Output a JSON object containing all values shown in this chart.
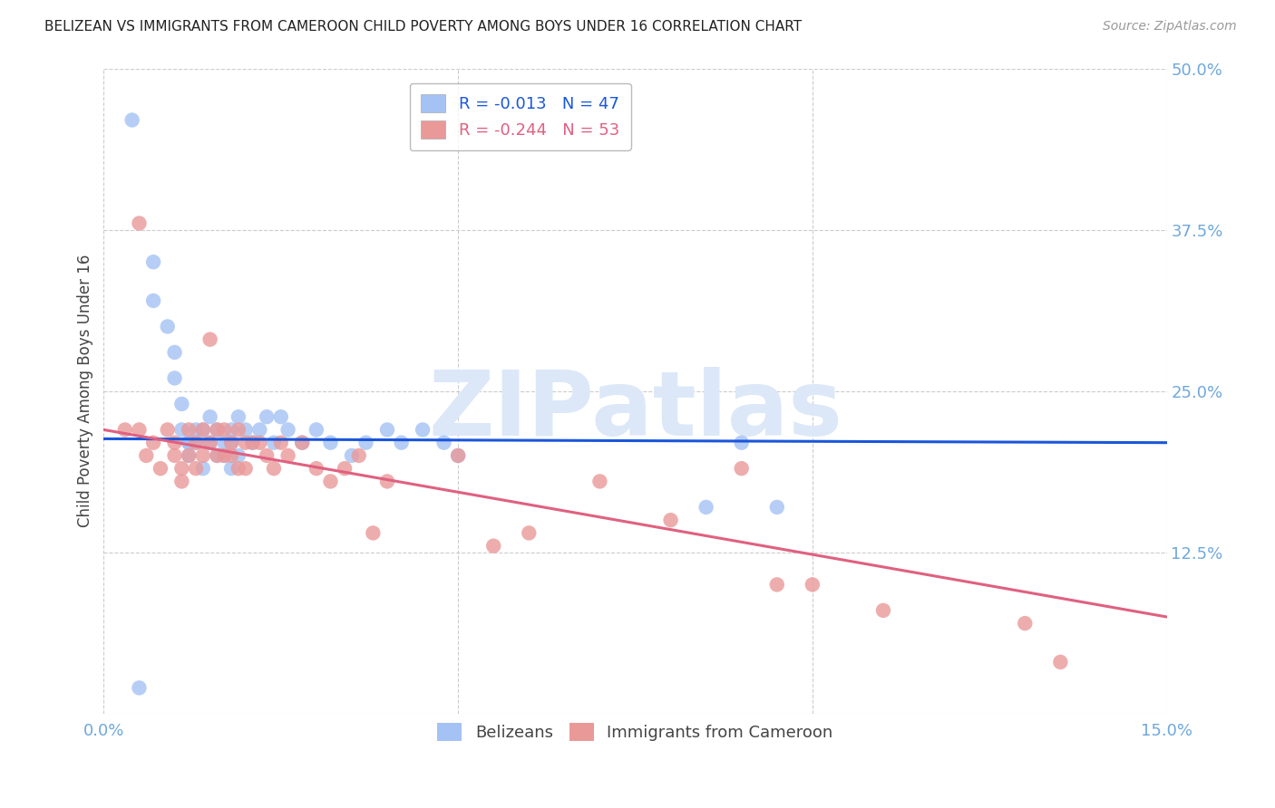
{
  "title": "BELIZEAN VS IMMIGRANTS FROM CAMEROON CHILD POVERTY AMONG BOYS UNDER 16 CORRELATION CHART",
  "source": "Source: ZipAtlas.com",
  "ylabel_label": "Child Poverty Among Boys Under 16",
  "x_min": 0.0,
  "x_max": 0.15,
  "y_min": 0.0,
  "y_max": 0.5,
  "x_ticks": [
    0.0,
    0.05,
    0.1,
    0.15
  ],
  "y_ticks": [
    0.0,
    0.125,
    0.25,
    0.375,
    0.5
  ],
  "legend1_label": "R = -0.013   N = 47",
  "legend2_label": "R = -0.244   N = 53",
  "legend1_color": "#a4c2f4",
  "legend2_color": "#ea9999",
  "line1_color": "#1a56db",
  "line2_color": "#e06080",
  "watermark_text": "ZIPatlas",
  "watermark_color": "#dce8f8",
  "grid_color": "#cccccc",
  "tick_label_color": "#6fa8dc",
  "blue_scatter_x": [
    0.004,
    0.007,
    0.007,
    0.009,
    0.01,
    0.01,
    0.011,
    0.011,
    0.012,
    0.012,
    0.012,
    0.013,
    0.013,
    0.014,
    0.014,
    0.015,
    0.015,
    0.016,
    0.016,
    0.017,
    0.017,
    0.018,
    0.018,
    0.018,
    0.019,
    0.019,
    0.02,
    0.021,
    0.022,
    0.023,
    0.024,
    0.025,
    0.026,
    0.028,
    0.03,
    0.032,
    0.035,
    0.037,
    0.04,
    0.042,
    0.045,
    0.048,
    0.05,
    0.085,
    0.09,
    0.095,
    0.005
  ],
  "blue_scatter_y": [
    0.46,
    0.35,
    0.32,
    0.3,
    0.28,
    0.26,
    0.24,
    0.22,
    0.21,
    0.21,
    0.2,
    0.22,
    0.21,
    0.22,
    0.19,
    0.23,
    0.21,
    0.22,
    0.2,
    0.21,
    0.2,
    0.22,
    0.21,
    0.19,
    0.23,
    0.2,
    0.22,
    0.21,
    0.22,
    0.23,
    0.21,
    0.23,
    0.22,
    0.21,
    0.22,
    0.21,
    0.2,
    0.21,
    0.22,
    0.21,
    0.22,
    0.21,
    0.2,
    0.16,
    0.21,
    0.16,
    0.02
  ],
  "pink_scatter_x": [
    0.003,
    0.005,
    0.005,
    0.006,
    0.007,
    0.008,
    0.009,
    0.01,
    0.01,
    0.011,
    0.011,
    0.012,
    0.012,
    0.013,
    0.013,
    0.014,
    0.014,
    0.015,
    0.015,
    0.016,
    0.016,
    0.017,
    0.017,
    0.018,
    0.018,
    0.019,
    0.019,
    0.02,
    0.02,
    0.021,
    0.022,
    0.023,
    0.024,
    0.025,
    0.026,
    0.028,
    0.03,
    0.032,
    0.034,
    0.036,
    0.038,
    0.04,
    0.05,
    0.055,
    0.06,
    0.07,
    0.08,
    0.09,
    0.095,
    0.1,
    0.11,
    0.13,
    0.135
  ],
  "pink_scatter_y": [
    0.22,
    0.38,
    0.22,
    0.2,
    0.21,
    0.19,
    0.22,
    0.21,
    0.2,
    0.19,
    0.18,
    0.22,
    0.2,
    0.21,
    0.19,
    0.22,
    0.2,
    0.29,
    0.21,
    0.22,
    0.2,
    0.22,
    0.2,
    0.21,
    0.2,
    0.22,
    0.19,
    0.21,
    0.19,
    0.21,
    0.21,
    0.2,
    0.19,
    0.21,
    0.2,
    0.21,
    0.19,
    0.18,
    0.19,
    0.2,
    0.14,
    0.18,
    0.2,
    0.13,
    0.14,
    0.18,
    0.15,
    0.19,
    0.1,
    0.1,
    0.08,
    0.07,
    0.04
  ],
  "line1_x": [
    0.0,
    0.15
  ],
  "line1_y": [
    0.213,
    0.21
  ],
  "line2_x": [
    0.0,
    0.15
  ],
  "line2_y": [
    0.22,
    0.075
  ],
  "bottom_legend_labels": [
    "Belizeans",
    "Immigrants from Cameroon"
  ]
}
